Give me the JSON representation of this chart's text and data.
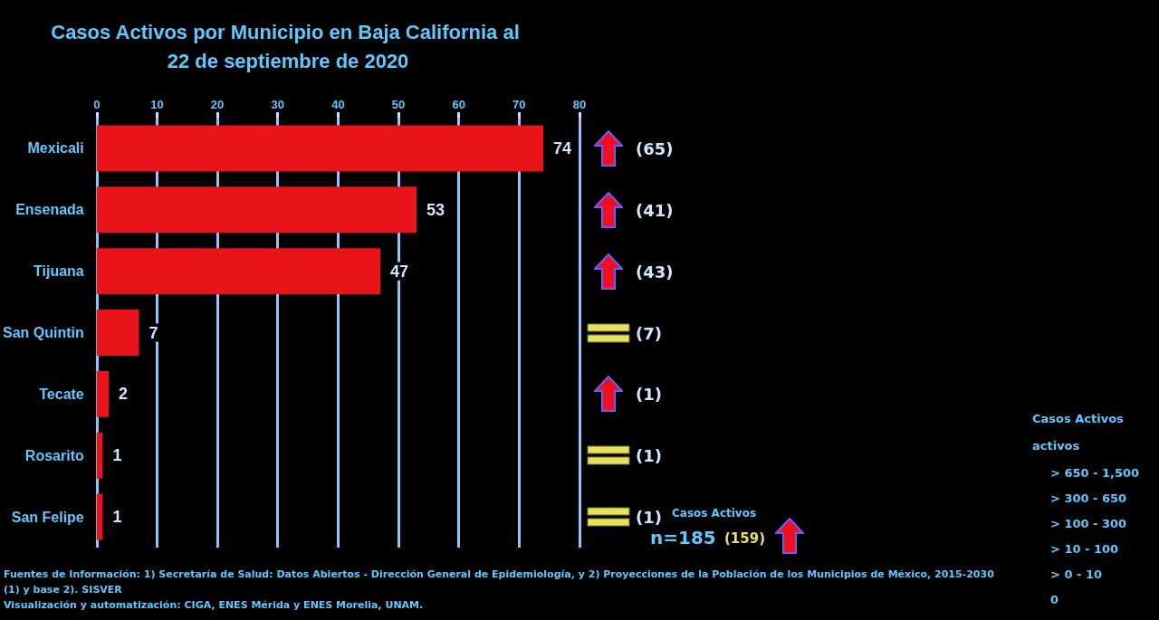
{
  "chart_data": {
    "type": "bar",
    "orientation": "horizontal",
    "title": "Casos Activos por Municipio en Baja California al 22 de septiembre de 2020",
    "categories": [
      "Mexicali",
      "Ensenada",
      "Tijuana",
      "San Quintin",
      "Tecate",
      "Rosarito",
      "San Felipe"
    ],
    "values": [
      74,
      53,
      47,
      7,
      2,
      1,
      1
    ],
    "color": "#e8141a",
    "data_labels": true,
    "xlim": [
      0,
      80
    ],
    "xticks": [
      0,
      10,
      20,
      30,
      40,
      50,
      60,
      70,
      80
    ],
    "grid": "x",
    "annotations": [
      "(65)",
      "(41)",
      "(43)",
      "(7)",
      "(1)",
      "(1)",
      "(1)",
      "Casos Activos",
      "n=185",
      "(159)",
      "Casos Activos",
      "activos",
      "> 650 - 1,500",
      "> 300 - 650",
      "> 100 - 300",
      "> 10 - 100",
      "> 0 - 10",
      "0",
      "Fuentes de Información: 1) Secretaría de Salud: Datos Abiertos - Dirección General de Epidemiología, y 2) Proyecciones de la Población de los Municipios de México, 2015-2030",
      "(1) y base 2). SISVER",
      "Visualización y automatización: CIGA, ENES Mérida y ENES Morelia, UNAM."
    ]
  }
}
